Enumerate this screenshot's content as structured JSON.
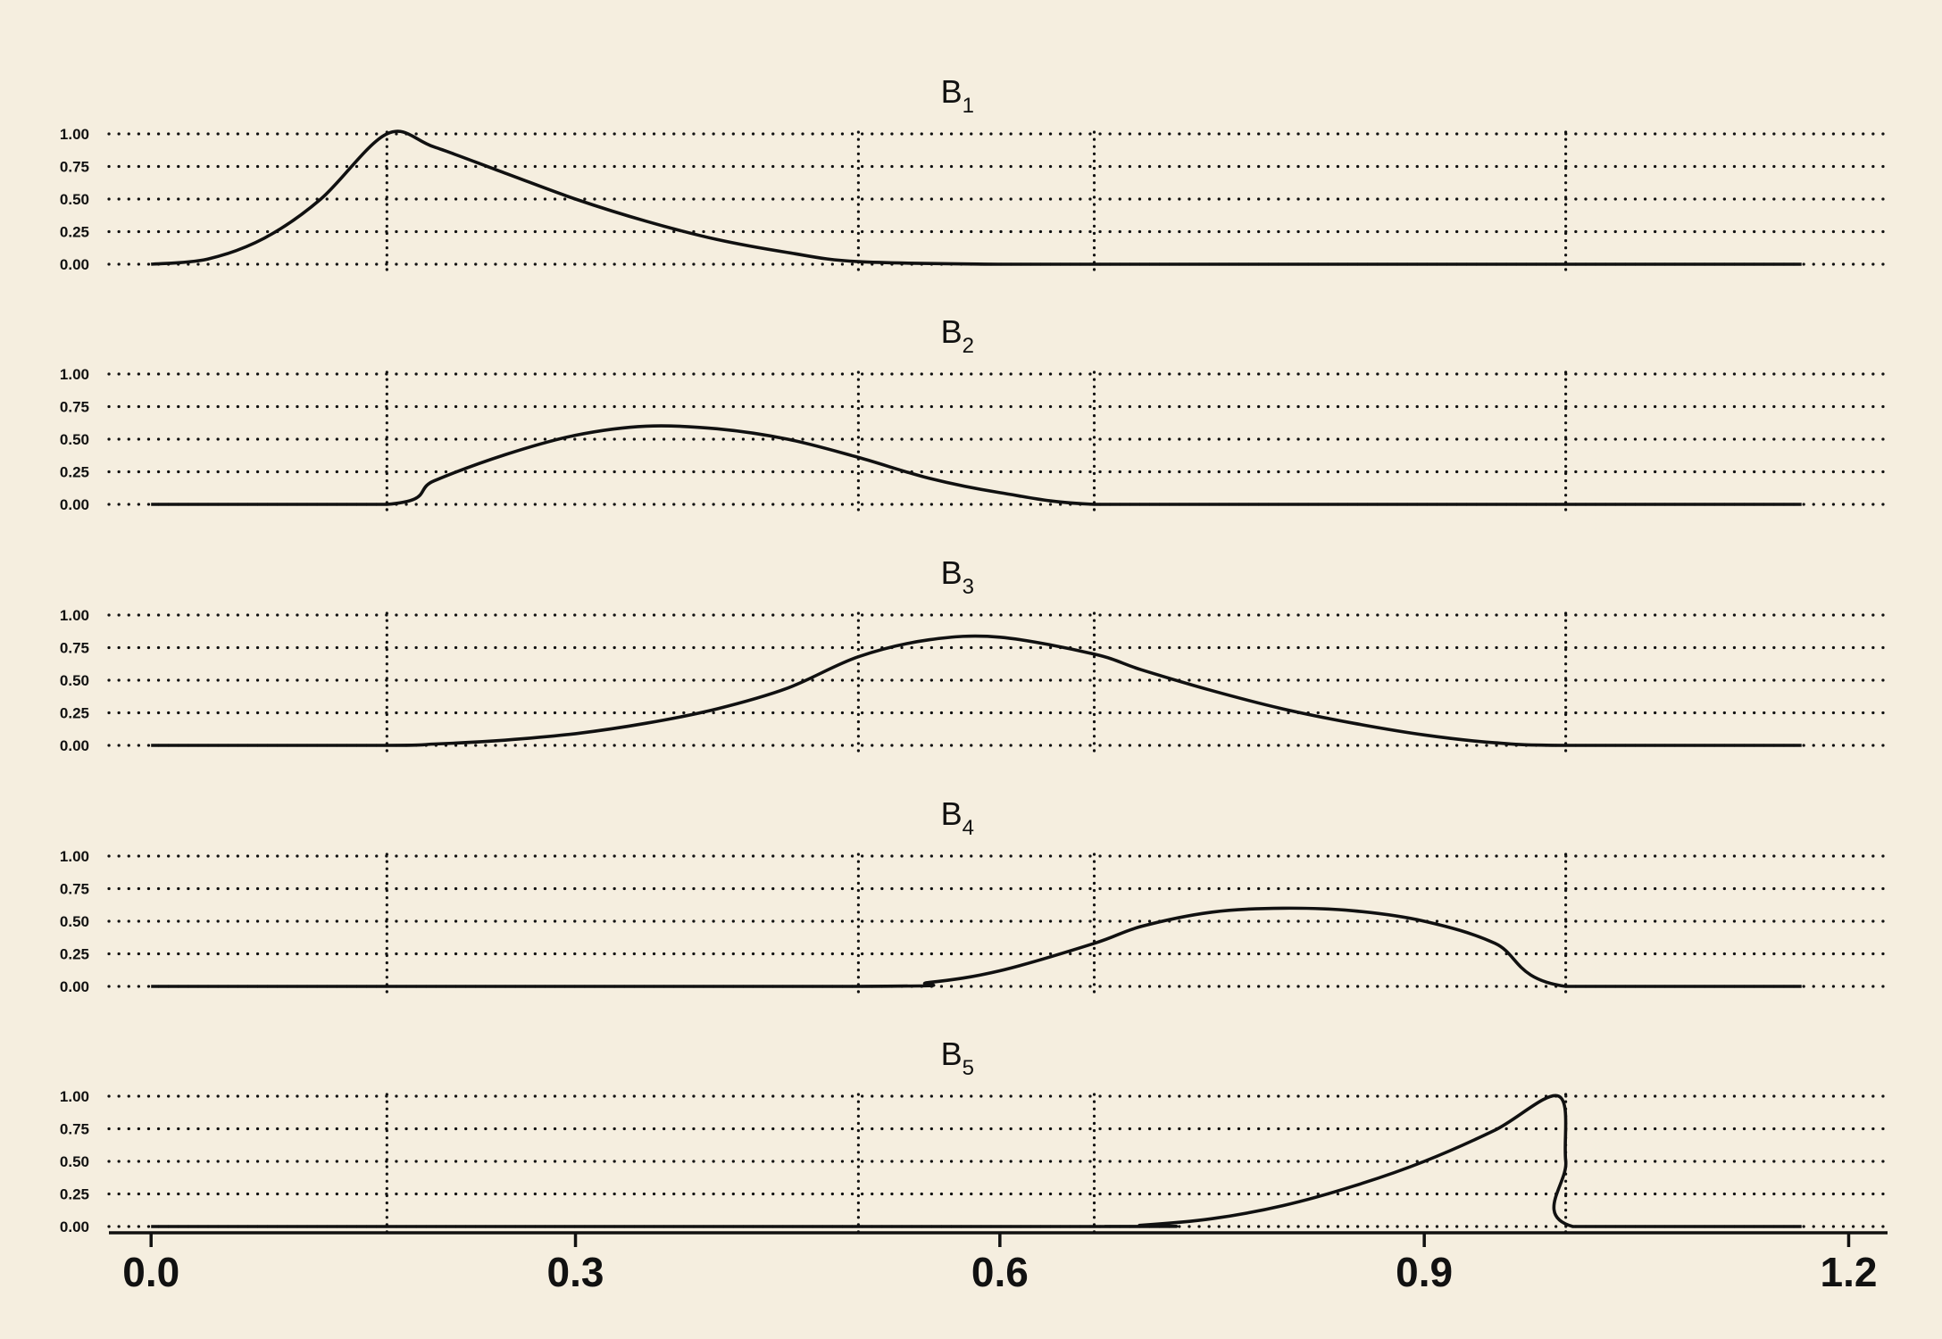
{
  "chart_data": {
    "type": "line",
    "layout": "stacked-panels",
    "grid": true,
    "x_range": [
      -0.05,
      1.23
    ],
    "ylim": [
      0,
      1
    ],
    "x_ticks": [
      0.0,
      0.3,
      0.6,
      0.9,
      1.2
    ],
    "x_tick_labels": [
      "0.0",
      "0.3",
      "0.6",
      "0.9",
      "1.2"
    ],
    "y_ticks": [
      0,
      0.25,
      0.5,
      0.75,
      1.0
    ],
    "y_tick_labels": [
      "0.00",
      "0.25",
      "0.50",
      "0.75",
      "1.00"
    ],
    "knots": [
      0.1667,
      0.5,
      0.6667,
      1.0
    ],
    "line_color": "#111111",
    "background_color": "#f5eedf",
    "panels": [
      {
        "title_base": "B",
        "title_sub": "1",
        "x": [
          0,
          0.04,
          0.08,
          0.12,
          0.1667,
          0.2,
          0.25,
          0.3,
          0.35,
          0.4,
          0.45,
          0.5,
          0.6,
          0.7,
          0.8,
          0.9,
          1.0,
          1.1667
        ],
        "y": [
          0,
          0.04,
          0.2,
          0.5,
          1.0,
          0.9,
          0.7,
          0.5,
          0.33,
          0.19,
          0.09,
          0.02,
          0,
          0,
          0,
          0,
          0,
          0
        ]
      },
      {
        "title_base": "B",
        "title_sub": "2",
        "x": [
          0,
          0.1667,
          0.2,
          0.25,
          0.3,
          0.35,
          0.4,
          0.45,
          0.5,
          0.55,
          0.6,
          0.6667,
          0.8,
          1.0,
          1.1667
        ],
        "y": [
          0,
          0,
          0.18,
          0.38,
          0.53,
          0.6,
          0.58,
          0.5,
          0.36,
          0.2,
          0.09,
          0,
          0,
          0,
          0
        ]
      },
      {
        "title_base": "B",
        "title_sub": "3",
        "x": [
          0,
          0.1667,
          0.2,
          0.25,
          0.3,
          0.35,
          0.4,
          0.45,
          0.5,
          0.55,
          0.6,
          0.6667,
          0.7,
          0.75,
          0.8,
          0.85,
          0.9,
          0.95,
          1.0,
          1.1667
        ],
        "y": [
          0,
          0,
          0.01,
          0.04,
          0.09,
          0.17,
          0.28,
          0.44,
          0.68,
          0.81,
          0.83,
          0.7,
          0.58,
          0.42,
          0.28,
          0.17,
          0.08,
          0.02,
          0,
          0
        ]
      },
      {
        "title_base": "B",
        "title_sub": "4",
        "x": [
          0,
          0.5,
          0.55,
          0.6,
          0.6667,
          0.7,
          0.75,
          0.8,
          0.85,
          0.9,
          0.95,
          1.0,
          1.1667
        ],
        "y": [
          0,
          0,
          0.03,
          0.12,
          0.33,
          0.46,
          0.57,
          0.6,
          0.58,
          0.5,
          0.33,
          0,
          0
        ]
      },
      {
        "title_base": "B",
        "title_sub": "5",
        "x": [
          0,
          0.6667,
          0.7,
          0.75,
          0.8,
          0.85,
          0.9,
          0.95,
          0.995,
          1.0,
          1.005,
          1.1667
        ],
        "y": [
          0,
          0,
          0.01,
          0.06,
          0.16,
          0.31,
          0.5,
          0.74,
          1.0,
          0.5,
          0,
          0
        ]
      }
    ]
  }
}
